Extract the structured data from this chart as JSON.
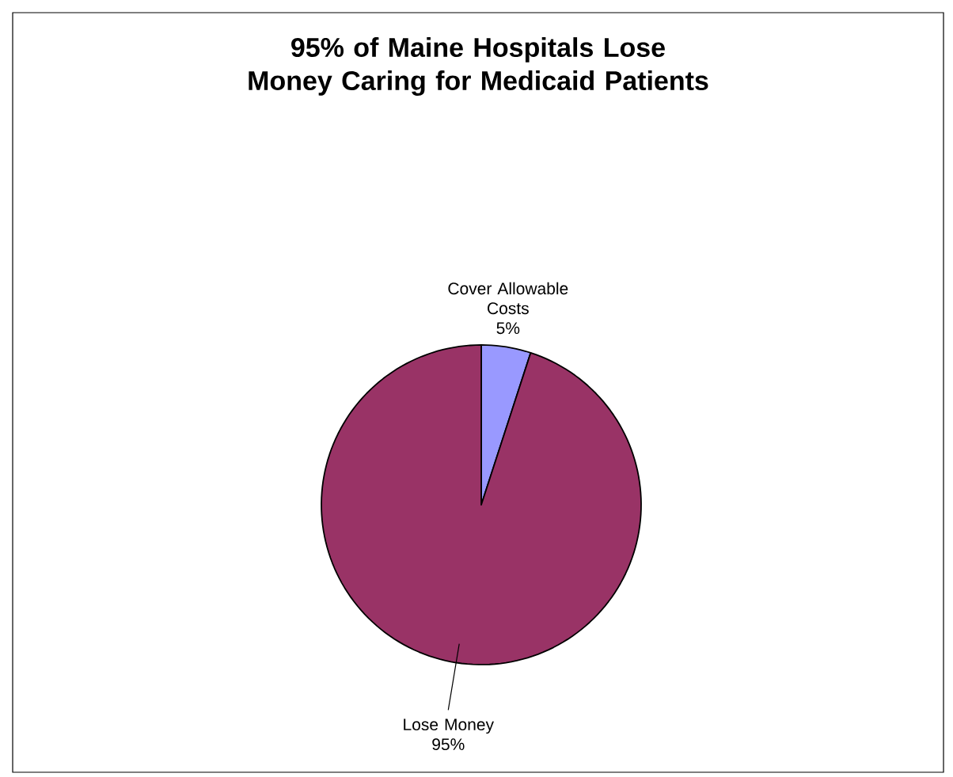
{
  "chart_data": {
    "type": "pie",
    "title": "95% of Maine Hospitals Lose Money Caring for Medicaid Patients",
    "categories": [
      "Cover Allowable Costs",
      "Lose Money"
    ],
    "values": [
      5,
      95
    ],
    "value_labels": [
      "5%",
      "95%"
    ],
    "colors": [
      "#9999ff",
      "#993366"
    ]
  }
}
